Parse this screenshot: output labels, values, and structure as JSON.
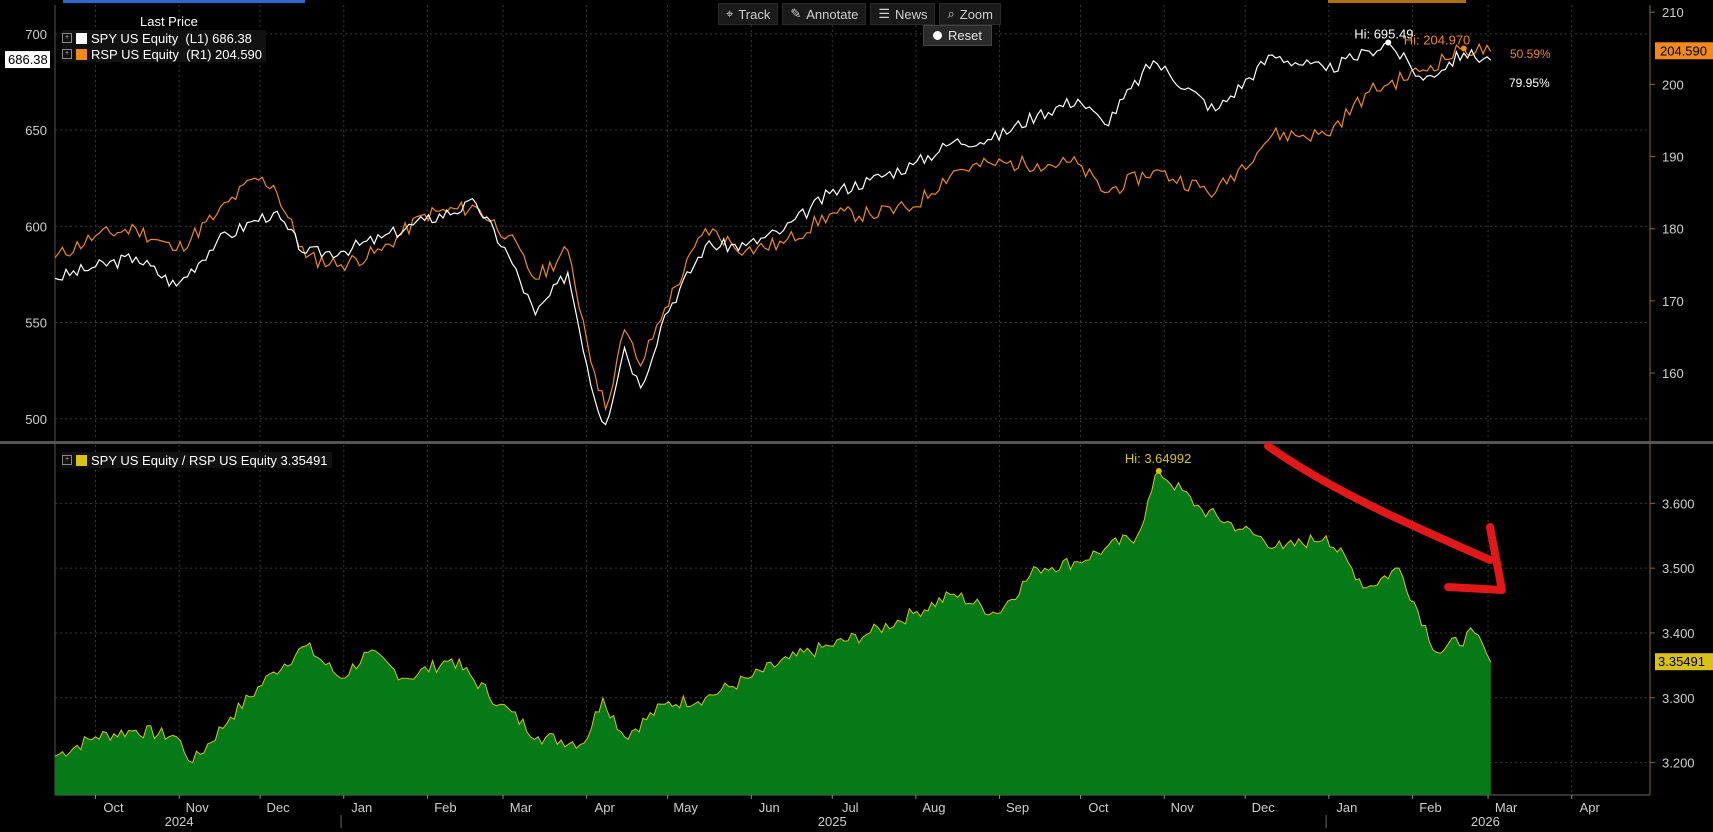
{
  "toolbar": {
    "track": "Track",
    "annotate": "Annotate",
    "news": "News",
    "zoom": "Zoom",
    "reset": "Reset"
  },
  "icons": {
    "track": "crosshair-icon",
    "annotate": "pencil-icon",
    "news": "news-icon",
    "zoom": "magnifier-icon",
    "reset": "radio-dot-icon"
  },
  "colors": {
    "spy": "#ffffff",
    "rsp": "#f08a1c",
    "ratio_line": "#d8c21a",
    "ratio_fill": "#077a18",
    "annotation_arrow": "#e01818"
  },
  "legend": {
    "header": "Last Price",
    "spy": "SPY US Equity  (L1) 686.38",
    "rsp": "RSP US Equity  (R1) 204.590",
    "ratio": "SPY US Equity / RSP US Equity 3.35491"
  },
  "labels": {
    "spy_last": "686.38",
    "rsp_last": "204.590",
    "ratio_last": "3.35491",
    "spy_hi": "Hi: 695.49",
    "rsp_hi": "Hi: 204.970",
    "rsp_pct": "50.59%",
    "spy_pct": "79.95%",
    "ratio_hi": "Hi: 3.64992"
  },
  "chart_data": [
    {
      "type": "line",
      "y_left_ticks": [
        500,
        550,
        600,
        650,
        700
      ],
      "y_right_ticks": [
        160,
        170,
        180,
        190,
        200,
        210
      ],
      "y_left_range": [
        490,
        715
      ],
      "y_right_range": [
        151,
        211
      ],
      "x_range": [
        "2024-09-16",
        "2026-04-30"
      ],
      "grid": true,
      "legend_position": "top-left",
      "series": [
        {
          "name": "SPY US Equity",
          "axis": "left",
          "points": [
            [
              "2024-09-16",
              573
            ],
            [
              "2024-10-01",
              579
            ],
            [
              "2024-10-16",
              584
            ],
            [
              "2024-10-31",
              569
            ],
            [
              "2024-11-15",
              592
            ],
            [
              "2024-11-29",
              603
            ],
            [
              "2024-12-06",
              607
            ],
            [
              "2024-12-18",
              586
            ],
            [
              "2024-12-31",
              587
            ],
            [
              "2025-01-15",
              594
            ],
            [
              "2025-01-31",
              603
            ],
            [
              "2025-02-19",
              612
            ],
            [
              "2025-03-03",
              585
            ],
            [
              "2025-03-13",
              554
            ],
            [
              "2025-03-25",
              576
            ],
            [
              "2025-04-04",
              510
            ],
            [
              "2025-04-08",
              497
            ],
            [
              "2025-04-15",
              537
            ],
            [
              "2025-04-21",
              516
            ],
            [
              "2025-04-30",
              554
            ],
            [
              "2025-05-15",
              590
            ],
            [
              "2025-05-30",
              590
            ],
            [
              "2025-06-13",
              598
            ],
            [
              "2025-06-30",
              617
            ],
            [
              "2025-07-15",
              624
            ],
            [
              "2025-07-31",
              632
            ],
            [
              "2025-08-15",
              644
            ],
            [
              "2025-08-29",
              645
            ],
            [
              "2025-09-15",
              658
            ],
            [
              "2025-09-30",
              666
            ],
            [
              "2025-10-10",
              653
            ],
            [
              "2025-10-28",
              686
            ],
            [
              "2025-11-20",
              660
            ],
            [
              "2025-12-11",
              689
            ],
            [
              "2025-12-31",
              681
            ],
            [
              "2026-01-16",
              691
            ],
            [
              "2026-01-23",
              695.49
            ],
            [
              "2026-02-05",
              676
            ],
            [
              "2026-02-20",
              690
            ],
            [
              "2026-03-02",
              686.38
            ]
          ]
        },
        {
          "name": "RSP US Equity",
          "axis": "right",
          "points": [
            [
              "2024-09-16",
              176
            ],
            [
              "2024-10-01",
              179
            ],
            [
              "2024-10-16",
              180
            ],
            [
              "2024-10-31",
              177
            ],
            [
              "2024-11-15",
              182
            ],
            [
              "2024-11-29",
              187
            ],
            [
              "2024-12-06",
              186
            ],
            [
              "2024-12-18",
              176
            ],
            [
              "2024-12-31",
              175
            ],
            [
              "2025-01-15",
              177
            ],
            [
              "2025-01-31",
              182
            ],
            [
              "2025-02-19",
              183
            ],
            [
              "2025-03-03",
              179
            ],
            [
              "2025-03-13",
              173
            ],
            [
              "2025-03-25",
              177
            ],
            [
              "2025-04-04",
              160
            ],
            [
              "2025-04-08",
              155
            ],
            [
              "2025-04-15",
              166
            ],
            [
              "2025-04-21",
              161
            ],
            [
              "2025-04-30",
              169
            ],
            [
              "2025-05-15",
              180
            ],
            [
              "2025-05-30",
              177
            ],
            [
              "2025-06-13",
              178
            ],
            [
              "2025-06-30",
              182
            ],
            [
              "2025-07-15",
              182
            ],
            [
              "2025-07-31",
              183
            ],
            [
              "2025-08-15",
              188
            ],
            [
              "2025-08-29",
              189
            ],
            [
              "2025-09-15",
              189
            ],
            [
              "2025-09-30",
              189
            ],
            [
              "2025-10-10",
              185
            ],
            [
              "2025-10-28",
              188
            ],
            [
              "2025-11-20",
              185
            ],
            [
              "2025-12-11",
              193
            ],
            [
              "2025-12-31",
              193
            ],
            [
              "2026-01-16",
              199
            ],
            [
              "2026-01-23",
              200
            ],
            [
              "2026-02-05",
              202
            ],
            [
              "2026-02-20",
              204.97
            ],
            [
              "2026-03-02",
              204.59
            ]
          ]
        }
      ]
    },
    {
      "type": "area",
      "y_right_ticks": [
        3.2,
        3.3,
        3.4,
        3.5,
        3.6
      ],
      "y_range": [
        3.15,
        3.69
      ],
      "x_range": [
        "2024-09-16",
        "2026-04-30"
      ],
      "grid": true,
      "legend_position": "top-left",
      "series": [
        {
          "name": "SPY US Equity / RSP US Equity",
          "points": [
            [
              "2024-09-16",
              3.21
            ],
            [
              "2024-10-01",
              3.24
            ],
            [
              "2024-10-16",
              3.25
            ],
            [
              "2024-10-31",
              3.24
            ],
            [
              "2024-11-06",
              3.2
            ],
            [
              "2024-11-20",
              3.27
            ],
            [
              "2024-12-06",
              3.34
            ],
            [
              "2024-12-18",
              3.38
            ],
            [
              "2024-12-31",
              3.33
            ],
            [
              "2025-01-10",
              3.37
            ],
            [
              "2025-01-24",
              3.33
            ],
            [
              "2025-02-10",
              3.36
            ],
            [
              "2025-02-28",
              3.29
            ],
            [
              "2025-03-14",
              3.24
            ],
            [
              "2025-03-31",
              3.23
            ],
            [
              "2025-04-07",
              3.3
            ],
            [
              "2025-04-15",
              3.24
            ],
            [
              "2025-04-30",
              3.29
            ],
            [
              "2025-05-15",
              3.3
            ],
            [
              "2025-05-31",
              3.33
            ],
            [
              "2025-06-15",
              3.36
            ],
            [
              "2025-06-30",
              3.38
            ],
            [
              "2025-07-15",
              3.4
            ],
            [
              "2025-07-31",
              3.43
            ],
            [
              "2025-08-15",
              3.46
            ],
            [
              "2025-08-31",
              3.43
            ],
            [
              "2025-09-15",
              3.5
            ],
            [
              "2025-09-30",
              3.51
            ],
            [
              "2025-10-10",
              3.53
            ],
            [
              "2025-10-22",
              3.55
            ],
            [
              "2025-10-30",
              3.64992
            ],
            [
              "2025-11-15",
              3.59
            ],
            [
              "2025-11-30",
              3.56
            ],
            [
              "2025-12-15",
              3.53
            ],
            [
              "2025-12-31",
              3.55
            ],
            [
              "2026-01-15",
              3.47
            ],
            [
              "2026-01-27",
              3.5
            ],
            [
              "2026-02-10",
              3.37
            ],
            [
              "2026-02-24",
              3.4
            ],
            [
              "2026-03-02",
              3.35491
            ]
          ]
        }
      ]
    }
  ],
  "x_axis": {
    "months": [
      {
        "label": "Oct",
        "date": "2024-10-01"
      },
      {
        "label": "Nov",
        "date": "2024-11-01"
      },
      {
        "label": "Dec",
        "date": "2024-12-01"
      },
      {
        "label": "Jan",
        "date": "2025-01-01"
      },
      {
        "label": "Feb",
        "date": "2025-02-01"
      },
      {
        "label": "Mar",
        "date": "2025-03-01"
      },
      {
        "label": "Apr",
        "date": "2025-04-01"
      },
      {
        "label": "May",
        "date": "2025-05-01"
      },
      {
        "label": "Jun",
        "date": "2025-06-01"
      },
      {
        "label": "Jul",
        "date": "2025-07-01"
      },
      {
        "label": "Aug",
        "date": "2025-08-01"
      },
      {
        "label": "Sep",
        "date": "2025-09-01"
      },
      {
        "label": "Oct",
        "date": "2025-10-01"
      },
      {
        "label": "Nov",
        "date": "2025-11-01"
      },
      {
        "label": "Dec",
        "date": "2025-12-01"
      },
      {
        "label": "Jan",
        "date": "2026-01-01"
      },
      {
        "label": "Feb",
        "date": "2026-02-01"
      },
      {
        "label": "Mar",
        "date": "2026-03-01"
      },
      {
        "label": "Apr",
        "date": "2026-04-01"
      }
    ],
    "years": [
      {
        "label": "2024",
        "date": "2024-11-01"
      },
      {
        "label": "2025",
        "date": "2025-07-01"
      },
      {
        "label": "2026",
        "date": "2026-02-28"
      }
    ],
    "year_dividers": [
      "2024-12-31",
      "2025-12-31"
    ]
  }
}
